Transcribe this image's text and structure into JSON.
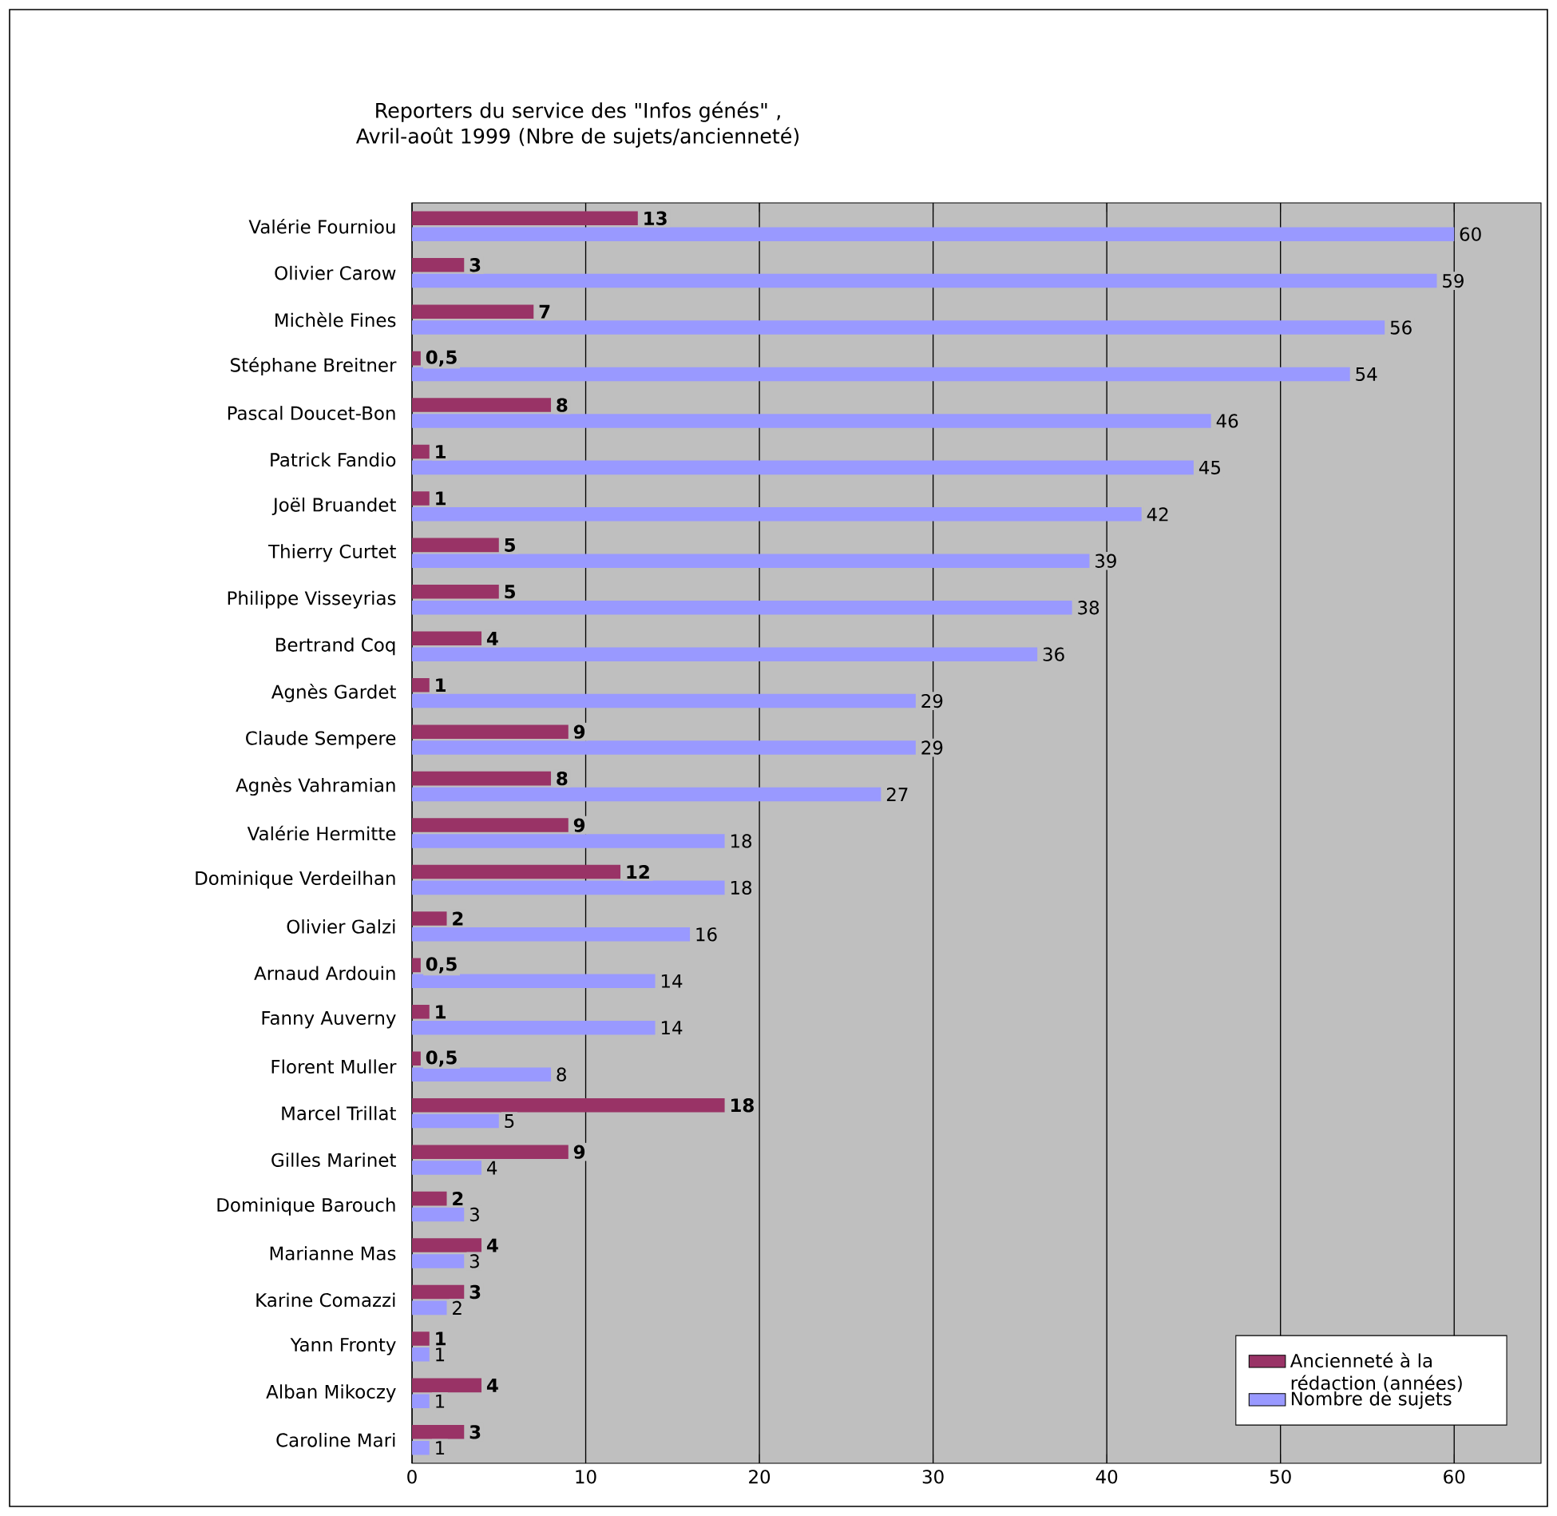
{
  "chart_data": {
    "type": "bar",
    "orientation": "horizontal",
    "title": "Reporters du service des  \"Infos génés\" , Avril-août 1999 (Nbre de sujets/ancienneté)",
    "categories": [
      "Valérie Fourniou",
      "Olivier Carow",
      "Michèle Fines",
      "Stéphane Breitner",
      "Pascal Doucet-Bon",
      "Patrick Fandio",
      "Joël Bruandet",
      "Thierry Curtet",
      "Philippe Visseyrias",
      "Bertrand Coq",
      "Agnès Gardet",
      "Claude Sempere",
      "Agnès Vahramian",
      "Valérie Hermitte",
      "Dominique Verdeilhan",
      "Olivier Galzi",
      "Arnaud Ardouin",
      "Fanny Auverny",
      "Florent Muller",
      "Marcel Trillat",
      "Gilles Marinet",
      "Dominique Barouch",
      "Marianne Mas",
      "Karine Comazzi",
      "Yann Fronty",
      "Alban Mikoczy",
      "Caroline Mari"
    ],
    "series": [
      {
        "name": "Ancienneté à la rédaction (années)",
        "color": "#993366",
        "values": [
          13,
          3,
          7,
          0.5,
          8,
          1,
          1,
          5,
          5,
          4,
          1,
          9,
          8,
          9,
          12,
          2,
          0.5,
          1,
          0.5,
          18,
          9,
          2,
          4,
          3,
          1,
          4,
          3
        ],
        "value_labels": [
          "13",
          "3",
          "7",
          "0,5",
          "8",
          "1",
          "1",
          "5",
          "5",
          "4",
          "1",
          "9",
          "8",
          "9",
          "12",
          "2",
          "0,5",
          "1",
          "0,5",
          "18",
          "9",
          "2",
          "4",
          "3",
          "1",
          "4",
          "3"
        ]
      },
      {
        "name": "Nombre de sujets",
        "color": "#9999ff",
        "values": [
          60,
          59,
          56,
          54,
          46,
          45,
          42,
          39,
          38,
          36,
          29,
          29,
          27,
          18,
          18,
          16,
          14,
          14,
          8,
          5,
          4,
          3,
          3,
          2,
          1,
          1,
          1
        ],
        "value_labels": [
          "60",
          "59",
          "56",
          "54",
          "46",
          "45",
          "42",
          "39",
          "38",
          "36",
          "29",
          "29",
          "27",
          "18",
          "18",
          "16",
          "14",
          "14",
          "8",
          "5",
          "4",
          "3",
          "3",
          "2",
          "1",
          "1",
          "1"
        ]
      }
    ],
    "xlim": [
      0,
      65
    ],
    "xticks": [
      0,
      10,
      20,
      30,
      40,
      50,
      60
    ],
    "grid": "x",
    "legend": "bottom right"
  }
}
